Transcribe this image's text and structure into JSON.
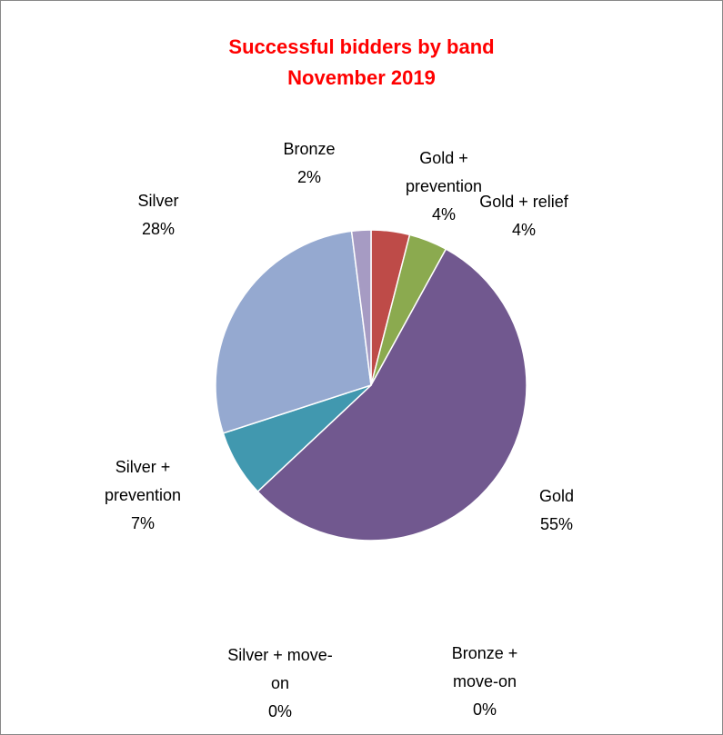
{
  "chart_data": {
    "type": "pie",
    "title": "Successful bidders by band",
    "subtitle": "November 2019",
    "slices": [
      {
        "label_lines": [
          "Gold +",
          "prevention"
        ],
        "value_label": "4%",
        "value": 4,
        "color": "#BE4B48"
      },
      {
        "label_lines": [
          "Gold + relief"
        ],
        "value_label": "4%",
        "value": 4,
        "color": "#8BAA4F"
      },
      {
        "label_lines": [
          "Gold"
        ],
        "value_label": "55%",
        "value": 55,
        "color": "#71588F"
      },
      {
        "label_lines": [
          "Bronze +",
          "move-on"
        ],
        "value_label": "0%",
        "value": 0,
        "color": "#F79646"
      },
      {
        "label_lines": [
          "Silver + move-",
          "on"
        ],
        "value_label": "0%",
        "value": 0,
        "color": "#2C4D75"
      },
      {
        "label_lines": [
          "Silver +",
          "prevention"
        ],
        "value_label": "7%",
        "value": 7,
        "color": "#4198AF"
      },
      {
        "label_lines": [
          "Silver"
        ],
        "value_label": "28%",
        "value": 28,
        "color": "#95A9D0"
      },
      {
        "label_lines": [
          "Bronze"
        ],
        "value_label": "2%",
        "value": 2,
        "color": "#A69BC3"
      }
    ]
  }
}
